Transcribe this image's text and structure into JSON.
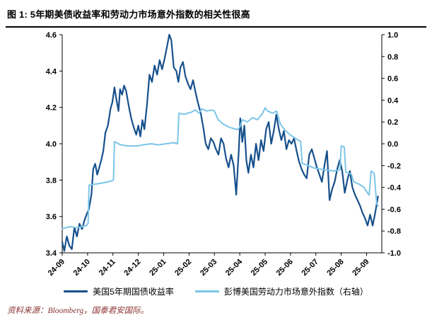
{
  "header": {
    "title": "图 1:  5年期美债收益率和劳动力市场意外指数的相关性很高"
  },
  "source": {
    "prefix": "资料来源：",
    "bloomberg": "Bloomberg",
    "suffix": "，国泰君安国际。"
  },
  "chart_data": {
    "type": "line",
    "title": "5年期美债收益率和劳动力市场意外指数的相关性很高",
    "grid": false,
    "legend_position": "bottom",
    "x_tick_labels": [
      "24-09",
      "24-10",
      "24-11",
      "24-12",
      "25-01",
      "25-02",
      "25-03",
      "25-04",
      "25-05",
      "25-06",
      "25-07",
      "25-08",
      "25-09"
    ],
    "x_tick_positions": [
      0,
      1,
      2,
      3,
      4,
      5,
      6,
      7,
      8,
      9,
      10,
      11,
      12
    ],
    "x_range": [
      0,
      12.6
    ],
    "y_left": {
      "range": [
        3.4,
        4.6
      ],
      "ticks": [
        3.4,
        3.6,
        3.8,
        4.0,
        4.2,
        4.4,
        4.6
      ]
    },
    "y_right": {
      "range": [
        -1.0,
        1.0
      ],
      "ticks": [
        -1.0,
        -0.8,
        -0.6,
        -0.4,
        -0.2,
        0.0,
        0.2,
        0.4,
        0.6,
        0.8,
        1.0
      ]
    },
    "series": [
      {
        "name": "美国5年期国债收益率",
        "axis": "left",
        "color": "#17508C",
        "width": 2.2,
        "points": [
          [
            0.0,
            3.46
          ],
          [
            0.08,
            3.41
          ],
          [
            0.18,
            3.49
          ],
          [
            0.28,
            3.44
          ],
          [
            0.38,
            3.42
          ],
          [
            0.48,
            3.54
          ],
          [
            0.58,
            3.49
          ],
          [
            0.68,
            3.56
          ],
          [
            0.78,
            3.53
          ],
          [
            0.88,
            3.58
          ],
          [
            0.96,
            3.61
          ],
          [
            1.05,
            3.64
          ],
          [
            1.15,
            3.72
          ],
          [
            1.22,
            3.86
          ],
          [
            1.3,
            3.89
          ],
          [
            1.38,
            3.83
          ],
          [
            1.46,
            3.87
          ],
          [
            1.54,
            3.91
          ],
          [
            1.62,
            3.96
          ],
          [
            1.7,
            4.06
          ],
          [
            1.8,
            4.1
          ],
          [
            1.9,
            4.19
          ],
          [
            1.98,
            4.23
          ],
          [
            2.06,
            4.31
          ],
          [
            2.14,
            4.24
          ],
          [
            2.22,
            4.18
          ],
          [
            2.28,
            4.3
          ],
          [
            2.36,
            4.27
          ],
          [
            2.44,
            4.32
          ],
          [
            2.52,
            4.29
          ],
          [
            2.62,
            4.21
          ],
          [
            2.72,
            4.14
          ],
          [
            2.82,
            4.09
          ],
          [
            2.92,
            4.05
          ],
          [
            3.0,
            4.1
          ],
          [
            3.08,
            4.04
          ],
          [
            3.16,
            4.13
          ],
          [
            3.24,
            4.08
          ],
          [
            3.34,
            4.21
          ],
          [
            3.44,
            4.38
          ],
          [
            3.54,
            4.34
          ],
          [
            3.64,
            4.43
          ],
          [
            3.74,
            4.38
          ],
          [
            3.84,
            4.46
          ],
          [
            3.94,
            4.41
          ],
          [
            4.04,
            4.47
          ],
          [
            4.14,
            4.54
          ],
          [
            4.22,
            4.6
          ],
          [
            4.3,
            4.57
          ],
          [
            4.4,
            4.42
          ],
          [
            4.5,
            4.4
          ],
          [
            4.58,
            4.34
          ],
          [
            4.66,
            4.42
          ],
          [
            4.76,
            4.45
          ],
          [
            4.86,
            4.37
          ],
          [
            4.96,
            4.33
          ],
          [
            5.06,
            4.3
          ],
          [
            5.16,
            4.35
          ],
          [
            5.26,
            4.28
          ],
          [
            5.36,
            4.22
          ],
          [
            5.46,
            4.17
          ],
          [
            5.56,
            4.09
          ],
          [
            5.66,
            4.0
          ],
          [
            5.76,
            3.97
          ],
          [
            5.86,
            4.03
          ],
          [
            5.96,
            4.01
          ],
          [
            6.06,
            3.97
          ],
          [
            6.16,
            3.94
          ],
          [
            6.26,
            4.03
          ],
          [
            6.36,
            4.0
          ],
          [
            6.46,
            3.92
          ],
          [
            6.56,
            3.87
          ],
          [
            6.66,
            3.94
          ],
          [
            6.76,
            3.88
          ],
          [
            6.86,
            3.72
          ],
          [
            6.96,
            3.96
          ],
          [
            7.02,
            4.14
          ],
          [
            7.1,
            4.01
          ],
          [
            7.18,
            4.1
          ],
          [
            7.26,
            3.91
          ],
          [
            7.34,
            3.84
          ],
          [
            7.44,
            3.94
          ],
          [
            7.54,
            3.87
          ],
          [
            7.64,
            4.0
          ],
          [
            7.74,
            3.91
          ],
          [
            7.84,
            4.02
          ],
          [
            7.94,
            3.96
          ],
          [
            8.04,
            4.08
          ],
          [
            8.14,
            4.12
          ],
          [
            8.24,
            4.0
          ],
          [
            8.34,
            4.07
          ],
          [
            8.44,
            4.16
          ],
          [
            8.54,
            4.08
          ],
          [
            8.64,
            4.02
          ],
          [
            8.74,
            4.07
          ],
          [
            8.84,
            3.97
          ],
          [
            8.94,
            4.02
          ],
          [
            9.04,
            4.0
          ],
          [
            9.14,
            4.03
          ],
          [
            9.24,
            3.96
          ],
          [
            9.34,
            3.9
          ],
          [
            9.44,
            3.86
          ],
          [
            9.54,
            3.83
          ],
          [
            9.64,
            3.81
          ],
          [
            9.74,
            3.94
          ],
          [
            9.84,
            3.97
          ],
          [
            9.94,
            3.92
          ],
          [
            10.04,
            3.87
          ],
          [
            10.14,
            3.83
          ],
          [
            10.24,
            3.79
          ],
          [
            10.34,
            3.88
          ],
          [
            10.44,
            3.96
          ],
          [
            10.54,
            3.69
          ],
          [
            10.64,
            3.75
          ],
          [
            10.74,
            3.79
          ],
          [
            10.84,
            3.86
          ],
          [
            10.94,
            3.91
          ],
          [
            11.04,
            3.85
          ],
          [
            11.14,
            3.73
          ],
          [
            11.24,
            3.8
          ],
          [
            11.34,
            3.85
          ],
          [
            11.44,
            3.76
          ],
          [
            11.54,
            3.72
          ],
          [
            11.64,
            3.69
          ],
          [
            11.74,
            3.66
          ],
          [
            11.84,
            3.62
          ],
          [
            11.94,
            3.59
          ],
          [
            12.04,
            3.55
          ],
          [
            12.14,
            3.61
          ],
          [
            12.24,
            3.55
          ],
          [
            12.34,
            3.62
          ],
          [
            12.45,
            3.71
          ]
        ]
      },
      {
        "name": "彭博美国劳动力市场意外指数（右轴）",
        "axis": "right",
        "color": "#7CC6E8",
        "width": 2.0,
        "points": [
          [
            0.0,
            -0.78
          ],
          [
            0.3,
            -0.76
          ],
          [
            0.6,
            -0.77
          ],
          [
            0.95,
            -0.75
          ],
          [
            1.02,
            -0.73
          ],
          [
            1.06,
            -0.38
          ],
          [
            1.3,
            -0.37
          ],
          [
            1.6,
            -0.36
          ],
          [
            1.96,
            -0.34
          ],
          [
            2.02,
            -0.33
          ],
          [
            2.06,
            0.02
          ],
          [
            2.3,
            -0.01
          ],
          [
            2.6,
            -0.02
          ],
          [
            2.95,
            -0.02
          ],
          [
            3.2,
            -0.01
          ],
          [
            3.5,
            0.0
          ],
          [
            3.8,
            -0.01
          ],
          [
            4.1,
            0.0
          ],
          [
            4.4,
            0.01
          ],
          [
            4.55,
            0.0
          ],
          [
            4.6,
            0.28
          ],
          [
            4.8,
            0.27
          ],
          [
            4.95,
            0.28
          ],
          [
            5.1,
            0.29
          ],
          [
            5.25,
            0.31
          ],
          [
            5.4,
            0.28
          ],
          [
            5.5,
            0.32
          ],
          [
            5.7,
            0.3
          ],
          [
            5.9,
            0.31
          ],
          [
            6.0,
            0.3
          ],
          [
            6.15,
            0.22
          ],
          [
            6.35,
            0.18
          ],
          [
            6.6,
            0.15
          ],
          [
            6.9,
            0.13
          ],
          [
            7.0,
            0.15
          ],
          [
            7.1,
            0.22
          ],
          [
            7.3,
            0.2
          ],
          [
            7.5,
            0.24
          ],
          [
            7.7,
            0.22
          ],
          [
            7.9,
            0.28
          ],
          [
            8.0,
            0.33
          ],
          [
            8.1,
            0.3
          ],
          [
            8.3,
            0.28
          ],
          [
            8.45,
            0.3
          ],
          [
            8.6,
            0.18
          ],
          [
            8.8,
            0.12
          ],
          [
            9.0,
            0.08
          ],
          [
            9.2,
            0.05
          ],
          [
            9.4,
            0.02
          ],
          [
            9.46,
            -0.18
          ],
          [
            9.7,
            -0.2
          ],
          [
            9.9,
            -0.22
          ],
          [
            10.1,
            -0.23
          ],
          [
            10.4,
            -0.24
          ],
          [
            10.7,
            -0.25
          ],
          [
            10.95,
            -0.24
          ],
          [
            11.0,
            -0.02
          ],
          [
            11.12,
            -0.03
          ],
          [
            11.18,
            -0.26
          ],
          [
            11.4,
            -0.28
          ],
          [
            11.5,
            -0.35
          ],
          [
            11.7,
            -0.37
          ],
          [
            11.9,
            -0.4
          ],
          [
            12.0,
            -0.44
          ],
          [
            12.1,
            -0.47
          ],
          [
            12.18,
            -0.25
          ],
          [
            12.3,
            -0.27
          ],
          [
            12.4,
            -0.55
          ],
          [
            12.45,
            -0.57
          ]
        ]
      }
    ]
  }
}
